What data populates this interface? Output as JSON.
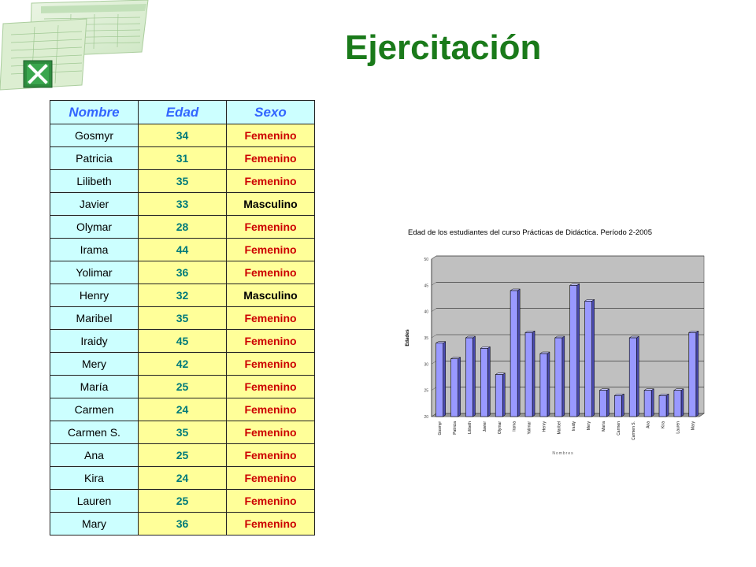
{
  "slide": {
    "title": "Ejercitación",
    "logo_icon": "excel-spreadsheet-icon"
  },
  "table": {
    "headers": [
      "Nombre",
      "Edad",
      "Sexo"
    ],
    "rows": [
      {
        "nombre": "Gosmyr",
        "edad": "34",
        "sexo": "Femenino"
      },
      {
        "nombre": "Patricia",
        "edad": "31",
        "sexo": "Femenino"
      },
      {
        "nombre": "Lilibeth",
        "edad": "35",
        "sexo": "Femenino"
      },
      {
        "nombre": "Javier",
        "edad": "33",
        "sexo": "Masculino"
      },
      {
        "nombre": "Olymar",
        "edad": "28",
        "sexo": "Femenino"
      },
      {
        "nombre": "Irama",
        "edad": "44",
        "sexo": "Femenino"
      },
      {
        "nombre": "Yolimar",
        "edad": "36",
        "sexo": "Femenino"
      },
      {
        "nombre": "Henry",
        "edad": "32",
        "sexo": "Masculino"
      },
      {
        "nombre": "Maribel",
        "edad": "35",
        "sexo": "Femenino"
      },
      {
        "nombre": "Iraidy",
        "edad": "45",
        "sexo": "Femenino"
      },
      {
        "nombre": "Mery",
        "edad": "42",
        "sexo": "Femenino"
      },
      {
        "nombre": "María",
        "edad": "25",
        "sexo": "Femenino"
      },
      {
        "nombre": "Carmen",
        "edad": "24",
        "sexo": "Femenino"
      },
      {
        "nombre": "Carmen S.",
        "edad": "35",
        "sexo": "Femenino"
      },
      {
        "nombre": "Ana",
        "edad": "25",
        "sexo": "Femenino"
      },
      {
        "nombre": "Kira",
        "edad": "24",
        "sexo": "Femenino"
      },
      {
        "nombre": "Lauren",
        "edad": "25",
        "sexo": "Femenino"
      },
      {
        "nombre": "Mary",
        "edad": "36",
        "sexo": "Femenino"
      }
    ]
  },
  "colors": {
    "title": "#1a7a1a",
    "header_text": "#3366ff",
    "name_bg": "#ccffff",
    "value_bg": "#ffff99",
    "age_text": "#007a7a",
    "female_text": "#cc0000",
    "male_text": "#000000",
    "bar_fill": "#9999ff",
    "plot_bg": "#c0c0c0"
  },
  "chart_data": {
    "type": "bar",
    "title": "Edad de los estudiantes del curso Prácticas de Didáctica. Período 2-2005",
    "xlabel": "Nombres",
    "ylabel": "Edades",
    "ylim": [
      20,
      50
    ],
    "yticks": [
      "20",
      "25",
      "30",
      "35",
      "40",
      "45",
      "50"
    ],
    "grid": true,
    "categories": [
      "Gosmyr",
      "Patricia",
      "Lilibeth",
      "Javier",
      "Olymar",
      "Irama",
      "Yolimar",
      "Henry",
      "Maribel",
      "Iraidy",
      "Mery",
      "María",
      "Carmen",
      "Carmen S.",
      "Ana",
      "Kira",
      "Lauren",
      "Mary"
    ],
    "values": [
      34,
      31,
      35,
      33,
      28,
      44,
      36,
      32,
      35,
      45,
      42,
      25,
      24,
      35,
      25,
      24,
      25,
      36
    ]
  }
}
